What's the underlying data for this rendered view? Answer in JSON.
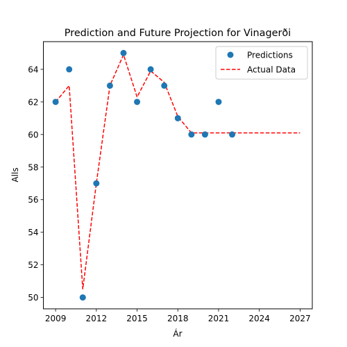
{
  "chart_data": {
    "type": "scatter+line",
    "title": "Prediction and Future Projection for Vinagerði",
    "xlabel": "Ár",
    "ylabel": "Alls",
    "xlim": [
      2008.1,
      2027.9
    ],
    "ylim": [
      49.3,
      65.7
    ],
    "xticks": [
      2009,
      2012,
      2015,
      2018,
      2021,
      2024,
      2027
    ],
    "yticks": [
      50,
      52,
      54,
      56,
      58,
      60,
      62,
      64
    ],
    "grid": false,
    "legend_position": "top-right",
    "series": [
      {
        "name": "Predictions",
        "kind": "scatter",
        "color": "#1f77b4",
        "x": [
          2009,
          2010,
          2011,
          2012,
          2013,
          2014,
          2015,
          2016,
          2017,
          2018,
          2019,
          2020,
          2021,
          2022
        ],
        "y": [
          62,
          64,
          50,
          57,
          63,
          65,
          62,
          64,
          63,
          61,
          60,
          60,
          62,
          60
        ]
      },
      {
        "name": "Actual Data",
        "kind": "line",
        "style": "dashed",
        "color": "#ff0000",
        "x": [
          2009,
          2010,
          2011,
          2012,
          2013,
          2014,
          2015,
          2016,
          2017,
          2018,
          2019,
          2020,
          2021,
          2022,
          2023,
          2024,
          2025,
          2026,
          2027
        ],
        "y": [
          62.0,
          63.0,
          50.5,
          57.0,
          63.0,
          64.9,
          62.3,
          63.9,
          63.2,
          61.1,
          60.1,
          60.1,
          60.1,
          60.1,
          60.1,
          60.1,
          60.1,
          60.1,
          60.1
        ]
      }
    ]
  }
}
